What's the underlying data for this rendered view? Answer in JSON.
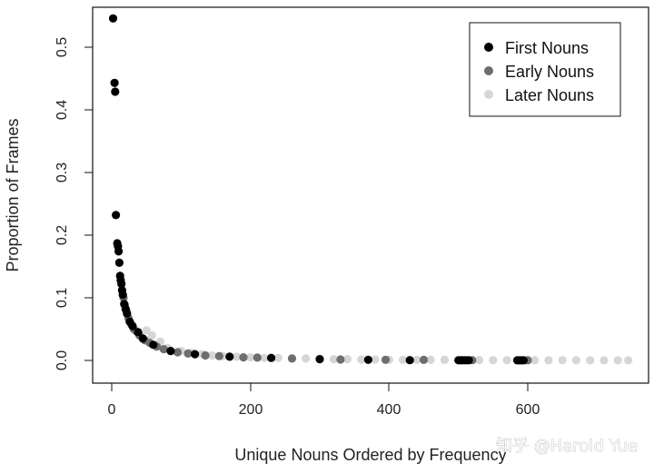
{
  "chart_data": {
    "type": "scatter",
    "title": "",
    "xlabel": "Unique Nouns Ordered by Frequency",
    "ylabel": "Proportion of Frames",
    "xlim": [
      0,
      745
    ],
    "ylim": [
      0,
      0.55
    ],
    "x_ticks": [
      "0",
      "200",
      "400",
      "600"
    ],
    "y_ticks": [
      "0.0",
      "0.1",
      "0.2",
      "0.3",
      "0.4",
      "0.5"
    ],
    "grid": false,
    "legend_position": "top-right",
    "colors": {
      "first": "#000000",
      "early": "#6e6e6e",
      "later": "#d6d6d6"
    },
    "series": [
      {
        "name": "First Nouns",
        "x": [
          2,
          4,
          5,
          6,
          8,
          9,
          10,
          11,
          12,
          13,
          14,
          15,
          16,
          18,
          20,
          22,
          26,
          30,
          38,
          45,
          60,
          85,
          120,
          170,
          230,
          300,
          370,
          430,
          500,
          503,
          506,
          509,
          512,
          515,
          585,
          588,
          591,
          594
        ],
        "y": [
          0.546,
          0.443,
          0.429,
          0.232,
          0.187,
          0.182,
          0.174,
          0.156,
          0.135,
          0.128,
          0.122,
          0.112,
          0.105,
          0.09,
          0.082,
          0.075,
          0.062,
          0.055,
          0.045,
          0.035,
          0.025,
          0.015,
          0.01,
          0.006,
          0.004,
          0.002,
          0.001,
          0.0005,
          0.0003,
          0.0003,
          0.0003,
          0.0003,
          0.0003,
          0.0003,
          0.0002,
          0.0002,
          0.0002,
          0.0002
        ]
      },
      {
        "name": "Early Nouns",
        "x": [
          17,
          19,
          21,
          24,
          28,
          32,
          36,
          40,
          48,
          55,
          65,
          75,
          95,
          110,
          135,
          155,
          190,
          210,
          260,
          330,
          395,
          450,
          520,
          600
        ],
        "y": [
          0.1,
          0.088,
          0.08,
          0.068,
          0.058,
          0.05,
          0.046,
          0.04,
          0.032,
          0.028,
          0.022,
          0.018,
          0.013,
          0.011,
          0.008,
          0.007,
          0.005,
          0.0045,
          0.003,
          0.0015,
          0.001,
          0.0008,
          0.0004,
          0.0002
        ]
      },
      {
        "name": "Later Nouns",
        "x": [
          50,
          58,
          70,
          80,
          100,
          115,
          130,
          145,
          160,
          180,
          200,
          220,
          240,
          260,
          280,
          300,
          320,
          340,
          360,
          380,
          400,
          420,
          440,
          460,
          480,
          530,
          550,
          570,
          610,
          630,
          650,
          670,
          690,
          710,
          730,
          745
        ],
        "y": [
          0.048,
          0.04,
          0.03,
          0.02,
          0.015,
          0.012,
          0.01,
          0.008,
          0.007,
          0.006,
          0.005,
          0.004,
          0.004,
          0.003,
          0.003,
          0.0025,
          0.002,
          0.002,
          0.0015,
          0.0015,
          0.001,
          0.001,
          0.001,
          0.0008,
          0.0008,
          0.0006,
          0.0005,
          0.0005,
          0.0004,
          0.0003,
          0.0003,
          0.0002,
          0.0002,
          0.0002,
          0.0001,
          0.0001
        ]
      }
    ]
  },
  "watermark": {
    "text": "知乎 @Harold Yue"
  }
}
